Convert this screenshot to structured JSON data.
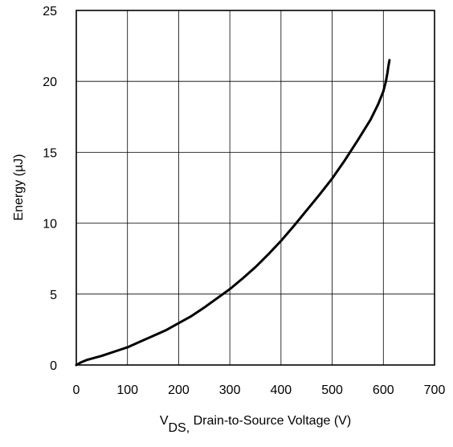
{
  "chart_data": {
    "type": "line",
    "title": "",
    "xlabel": {
      "sub_prefix": "V",
      "sub": "DS,",
      "rest": " Drain-to-Source Voltage (V)"
    },
    "ylabel": "Energy (µJ)",
    "xlim": [
      0,
      700
    ],
    "ylim": [
      0,
      25
    ],
    "x_ticks": [
      0,
      100,
      200,
      300,
      400,
      500,
      600,
      700
    ],
    "y_ticks": [
      0,
      5,
      10,
      15,
      20,
      25
    ],
    "grid": true,
    "legend": "none",
    "line_color": "#000000",
    "series": [
      {
        "x": [
          0,
          10,
          20,
          30,
          50,
          75,
          100,
          125,
          150,
          175,
          200,
          225,
          250,
          275,
          300,
          325,
          350,
          375,
          400,
          425,
          450,
          475,
          500,
          525,
          550,
          575,
          590,
          600,
          605,
          608,
          610,
          612
        ],
        "y": [
          0,
          0.2,
          0.35,
          0.45,
          0.65,
          0.95,
          1.25,
          1.65,
          2.05,
          2.45,
          2.95,
          3.45,
          4.05,
          4.7,
          5.35,
          6.1,
          6.9,
          7.8,
          8.75,
          9.8,
          10.9,
          12.0,
          13.15,
          14.45,
          15.85,
          17.3,
          18.4,
          19.3,
          20.0,
          20.6,
          21.1,
          21.5
        ]
      }
    ]
  }
}
